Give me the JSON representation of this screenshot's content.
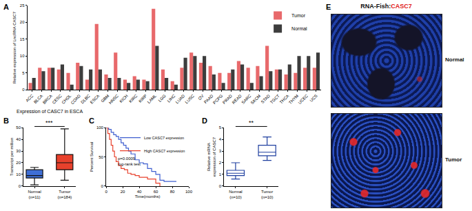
{
  "chart_data": [
    {
      "label": "A",
      "type": "bar",
      "y_label": "Relative expression of LncRNA CASC7",
      "categories": [
        "ACC",
        "BLCA",
        "BRCA",
        "CESC",
        "CHOL",
        "COAD",
        "DLBC",
        "ESCA",
        "GBM",
        "HNSC",
        "KICH",
        "KIRC",
        "KIRP",
        "LAML",
        "LGG",
        "LIHC",
        "LUAD",
        "LUSC",
        "OV",
        "PAAD",
        "PCPG",
        "PRAD",
        "READ",
        "SARC",
        "SKCM",
        "STAD",
        "TGCT",
        "THCA",
        "THYM",
        "UCEC",
        "UCS"
      ],
      "series": [
        {
          "name": "Tumor",
          "color": "#e8696b",
          "values": [
            2,
            6.5,
            6.5,
            6,
            5,
            8,
            3,
            19.5,
            4.5,
            11,
            3,
            4,
            3,
            24,
            6,
            2.5,
            6.5,
            11,
            8,
            7,
            5,
            5,
            8.5,
            6.5,
            7,
            13,
            6,
            4.5,
            5,
            6.5,
            6.5
          ]
        },
        {
          "name": "Normal",
          "color": "#3d3d3d",
          "values": [
            3.5,
            5.5,
            6.5,
            7.5,
            1.5,
            7,
            6,
            6,
            3.5,
            3.5,
            2,
            3,
            2.5,
            13,
            3.5,
            1.5,
            9.5,
            10,
            10,
            4.5,
            2,
            6,
            7.5,
            2,
            4,
            5.5,
            6,
            7.5,
            10,
            10,
            11
          ]
        }
      ],
      "ylim": [
        0,
        25
      ],
      "yticks": [
        0,
        5,
        10,
        15,
        20,
        25
      ],
      "legend": "upper right"
    },
    {
      "label": "B",
      "type": "box",
      "title": "Expression of CASC7 in ESCA",
      "y_label": "Transcript per million",
      "categories": [
        "Normal\n(n=11)",
        "Tumor\n(n=184)"
      ],
      "colors": [
        "#3f6fd6",
        "#e8412c"
      ],
      "lowerfence": [
        1,
        5
      ],
      "q1": [
        7,
        14
      ],
      "median": [
        9,
        20
      ],
      "q3": [
        14,
        27
      ],
      "upperfence": [
        16,
        49
      ],
      "ylim": [
        0,
        50
      ],
      "yticks": [
        0,
        10,
        20,
        30,
        40,
        50
      ],
      "annotation": "***"
    },
    {
      "label": "C",
      "type": "line",
      "x_label": "Time(months)",
      "y_label": "Percent Survival",
      "series": [
        {
          "name": "Low CASC7 expression",
          "color": "#3f5fd0",
          "x": [
            0,
            3,
            6,
            9,
            12,
            15,
            18,
            21,
            24,
            27,
            30,
            35,
            40,
            45,
            50,
            55,
            60,
            65,
            70,
            85
          ],
          "values": [
            100,
            97,
            92,
            88,
            85,
            80,
            74,
            70,
            65,
            60,
            55,
            45,
            40,
            38,
            30,
            25,
            20,
            10,
            8,
            8
          ]
        },
        {
          "name": "High CASC7 expression",
          "color": "#e8412c",
          "x": [
            0,
            2,
            4,
            6,
            8,
            10,
            12,
            15,
            18,
            22,
            26,
            30,
            35,
            40,
            50,
            60,
            65
          ],
          "values": [
            100,
            90,
            80,
            70,
            60,
            50,
            42,
            35,
            30,
            28,
            22,
            20,
            18,
            15,
            12,
            5,
            0
          ]
        }
      ],
      "xlim": [
        0,
        100
      ],
      "xticks": [
        0,
        20,
        40,
        60,
        80,
        100
      ],
      "ylim": [
        0,
        100
      ],
      "yticks": [
        0,
        50,
        100
      ],
      "annotation": "p=0.0009\nlog-rank test",
      "legend": "upper right",
      "line_style": "step"
    },
    {
      "label": "D",
      "type": "box",
      "y_label": "Relative mRNA\nexpression of CASC7",
      "categories": [
        "Normal\n(n=10)",
        "Tumor\n(n=10)"
      ],
      "colors": [
        "#1f3f9f",
        "#1f3f9f"
      ],
      "lowerfence": [
        0.6,
        2.2
      ],
      "q1": [
        0.9,
        2.6
      ],
      "median": [
        1.1,
        2.9
      ],
      "q3": [
        1.35,
        3.5
      ],
      "upperfence": [
        2,
        4.2
      ],
      "ylim": [
        0,
        5
      ],
      "yticks": [
        0,
        1,
        2,
        3,
        4,
        5
      ],
      "annotation": "**"
    },
    {
      "label": "E",
      "type": "image",
      "title_parts": [
        {
          "text": "RNA-Fish:",
          "color": "#111111"
        },
        {
          "text": "CASC7",
          "color": "#e02020"
        }
      ],
      "images": [
        "Normal",
        "Tumor"
      ]
    }
  ]
}
